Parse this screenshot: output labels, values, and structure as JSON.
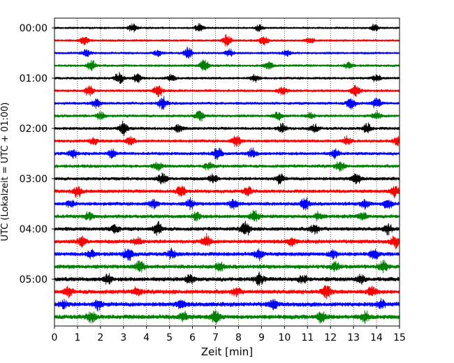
{
  "chart_data": {
    "type": "line",
    "xlabel": "Zeit  [min]",
    "ylabel": "UTC (Lokalzeit = UTC + 01:00)",
    "xlim": [
      0,
      15
    ],
    "x_ticks": [
      "0",
      "1",
      "2",
      "3",
      "4",
      "5",
      "6",
      "7",
      "8",
      "9",
      "10",
      "11",
      "12",
      "13",
      "14",
      "15"
    ],
    "y_ticks": [
      {
        "label": "00:00",
        "trace": 0
      },
      {
        "label": "01:00",
        "trace": 4
      },
      {
        "label": "02:00",
        "trace": 8
      },
      {
        "label": "03:00",
        "trace": 12
      },
      {
        "label": "04:00",
        "trace": 16
      },
      {
        "label": "05:00",
        "trace": 20
      }
    ],
    "grid": "vertical dotted lines at each minute",
    "trace_interval_minutes": 15,
    "trace_count": 24,
    "trace_colors": [
      "#000000",
      "#ff0000",
      "#0000ff",
      "#008000"
    ],
    "traces": [
      {
        "start": "00:00",
        "events": [
          [
            3.4,
            1.2
          ],
          [
            6.3,
            1.0
          ],
          [
            8.9,
            0.8
          ],
          [
            13.9,
            0.9
          ]
        ]
      },
      {
        "start": "00:15",
        "events": [
          [
            1.3,
            1.1
          ],
          [
            7.5,
            1.5
          ],
          [
            9.1,
            1.3
          ],
          [
            11.1,
            0.9
          ]
        ]
      },
      {
        "start": "00:30",
        "events": [
          [
            1.4,
            1.0
          ],
          [
            4.5,
            0.9
          ],
          [
            5.8,
            1.4
          ],
          [
            7.6,
            1.0
          ],
          [
            10.1,
            0.8
          ]
        ]
      },
      {
        "start": "00:45",
        "events": [
          [
            1.6,
            1.5
          ],
          [
            6.5,
            1.6
          ],
          [
            9.3,
            1.0
          ],
          [
            12.8,
            0.9
          ]
        ]
      },
      {
        "start": "01:00",
        "events": [
          [
            2.8,
            1.6
          ],
          [
            3.6,
            1.2
          ],
          [
            5.1,
            0.9
          ],
          [
            8.7,
            1.0
          ],
          [
            14.0,
            0.9
          ]
        ]
      },
      {
        "start": "01:15",
        "events": [
          [
            1.5,
            1.3
          ],
          [
            4.5,
            1.8
          ],
          [
            9.9,
            1.2
          ],
          [
            13.1,
            1.7
          ]
        ]
      },
      {
        "start": "01:30",
        "events": [
          [
            1.8,
            1.1
          ],
          [
            4.7,
            1.6
          ],
          [
            12.9,
            1.8
          ],
          [
            14.0,
            1.4
          ]
        ]
      },
      {
        "start": "01:45",
        "events": [
          [
            2.0,
            1.0
          ],
          [
            6.3,
            1.4
          ],
          [
            9.7,
            1.0
          ],
          [
            11.1,
            0.9
          ],
          [
            14.0,
            1.0
          ]
        ]
      },
      {
        "start": "02:00",
        "events": [
          [
            3.0,
            1.6
          ],
          [
            5.4,
            1.0
          ],
          [
            9.9,
            1.1
          ],
          [
            11.3,
            1.0
          ],
          [
            13.6,
            1.3
          ]
        ]
      },
      {
        "start": "02:15",
        "events": [
          [
            1.7,
            1.0
          ],
          [
            3.3,
            1.1
          ],
          [
            7.9,
            1.4
          ],
          [
            12.7,
            1.0
          ],
          [
            14.9,
            1.3
          ]
        ]
      },
      {
        "start": "02:30",
        "events": [
          [
            0.8,
            1.2
          ],
          [
            2.5,
            1.2
          ],
          [
            7.1,
            1.7
          ],
          [
            8.6,
            1.2
          ],
          [
            12.2,
            1.1
          ]
        ]
      },
      {
        "start": "02:45",
        "events": [
          [
            4.5,
            1.0
          ],
          [
            6.7,
            0.9
          ],
          [
            12.4,
            1.2
          ]
        ]
      },
      {
        "start": "03:00",
        "events": [
          [
            4.7,
            1.4
          ],
          [
            6.9,
            1.2
          ],
          [
            9.8,
            1.2
          ],
          [
            13.1,
            1.4
          ]
        ]
      },
      {
        "start": "03:15",
        "events": [
          [
            1.0,
            1.6
          ],
          [
            5.5,
            1.7
          ],
          [
            8.4,
            1.1
          ],
          [
            14.8,
            1.4
          ]
        ]
      },
      {
        "start": "03:30",
        "events": [
          [
            0.7,
            1.0
          ],
          [
            4.3,
            1.0
          ],
          [
            5.9,
            1.2
          ],
          [
            7.8,
            1.3
          ],
          [
            10.9,
            1.8
          ],
          [
            13.5,
            1.3
          ],
          [
            14.5,
            1.2
          ]
        ]
      },
      {
        "start": "03:45",
        "events": [
          [
            1.5,
            1.0
          ],
          [
            6.2,
            1.0
          ],
          [
            8.7,
            1.5
          ],
          [
            11.5,
            1.0
          ],
          [
            13.4,
            1.0
          ]
        ]
      },
      {
        "start": "04:00",
        "events": [
          [
            2.6,
            1.3
          ],
          [
            4.5,
            1.6
          ],
          [
            8.3,
            1.9
          ],
          [
            11.3,
            1.3
          ],
          [
            14.5,
            1.2
          ]
        ]
      },
      {
        "start": "04:15",
        "events": [
          [
            1.2,
            1.3
          ],
          [
            3.6,
            1.2
          ],
          [
            6.6,
            1.6
          ],
          [
            10.3,
            1.0
          ],
          [
            14.8,
            1.5
          ]
        ]
      },
      {
        "start": "04:30",
        "events": [
          [
            1.6,
            1.0
          ],
          [
            3.2,
            1.8
          ],
          [
            5.1,
            1.1
          ],
          [
            8.9,
            1.3
          ],
          [
            12.1,
            1.2
          ],
          [
            13.9,
            1.2
          ]
        ]
      },
      {
        "start": "04:45",
        "events": [
          [
            3.7,
            1.5
          ],
          [
            7.2,
            1.2
          ],
          [
            12.2,
            1.0
          ],
          [
            14.3,
            1.3
          ]
        ]
      },
      {
        "start": "05:00",
        "events": [
          [
            2.3,
            1.1
          ],
          [
            5.9,
            1.0
          ],
          [
            8.9,
            1.3
          ],
          [
            10.8,
            1.0
          ],
          [
            13.3,
            1.1
          ]
        ]
      },
      {
        "start": "05:15",
        "events": [
          [
            0.6,
            1.1
          ],
          [
            3.6,
            1.2
          ],
          [
            7.9,
            1.0
          ],
          [
            11.8,
            1.9
          ],
          [
            13.8,
            1.1
          ]
        ]
      },
      {
        "start": "05:30",
        "events": [
          [
            0.4,
            1.0
          ],
          [
            1.9,
            1.3
          ],
          [
            5.5,
            1.1
          ],
          [
            9.5,
            1.2
          ],
          [
            14.2,
            1.0
          ]
        ]
      },
      {
        "start": "05:45",
        "events": [
          [
            1.6,
            1.4
          ],
          [
            5.6,
            1.2
          ],
          [
            7.0,
            1.6
          ],
          [
            11.6,
            1.3
          ],
          [
            13.5,
            1.2
          ]
        ]
      }
    ]
  }
}
